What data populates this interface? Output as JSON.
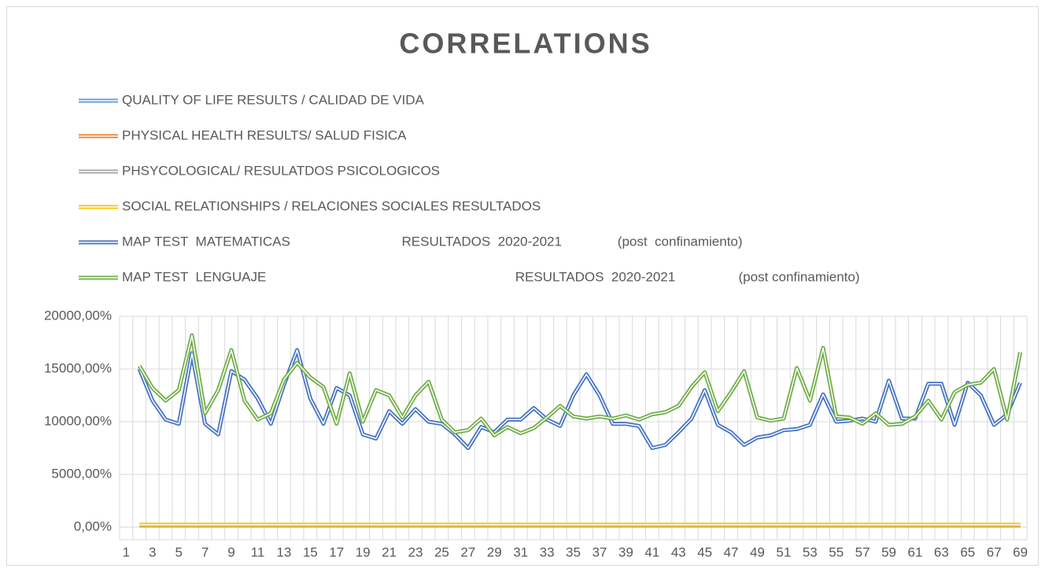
{
  "chart_data": {
    "type": "line",
    "title": "CORRELATIONS",
    "categories": [
      1,
      null,
      3,
      null,
      5,
      null,
      7,
      null,
      9,
      null,
      11,
      null,
      13,
      null,
      15,
      null,
      17,
      null,
      19,
      null,
      21,
      null,
      23,
      null,
      25,
      null,
      27,
      null,
      29,
      null,
      31,
      null,
      33,
      null,
      35,
      null,
      37,
      null,
      39,
      null,
      41,
      null,
      43,
      null,
      45,
      null,
      47,
      null,
      49,
      null,
      51,
      null,
      53,
      null,
      55,
      null,
      57,
      null,
      59,
      null,
      61,
      null,
      63,
      null,
      65,
      null,
      67,
      null,
      69
    ],
    "series": [
      {
        "name": "QUALITY OF LIFE RESULTS / CALIDAD DE VIDA",
        "color": "#5b9bd5",
        "values": [
          null,
          150,
          150,
          150,
          150,
          150,
          150,
          150,
          150,
          150,
          150,
          150,
          150,
          150,
          150,
          150,
          150,
          150,
          150,
          150,
          150,
          150,
          150,
          150,
          150,
          150,
          150,
          150,
          150,
          150,
          150,
          150,
          150,
          150,
          150,
          150,
          150,
          150,
          150,
          150,
          150,
          150,
          150,
          150,
          150,
          150,
          150,
          150,
          150,
          150,
          150,
          150,
          150,
          150,
          150,
          150,
          150,
          150,
          150,
          150,
          150,
          150,
          150,
          150,
          150,
          150,
          150,
          150,
          150
        ]
      },
      {
        "name": "PHYSICAL HEALTH RESULTS/ SALUD FISICA",
        "color": "#ed7d31",
        "values": [
          null,
          180,
          180,
          180,
          180,
          180,
          180,
          180,
          180,
          180,
          180,
          180,
          180,
          180,
          180,
          180,
          180,
          180,
          180,
          180,
          180,
          180,
          180,
          180,
          180,
          180,
          180,
          180,
          180,
          180,
          180,
          180,
          180,
          180,
          180,
          180,
          180,
          180,
          180,
          180,
          180,
          180,
          180,
          180,
          180,
          180,
          180,
          180,
          180,
          180,
          180,
          180,
          180,
          180,
          180,
          180,
          180,
          180,
          180,
          180,
          180,
          180,
          180,
          180,
          180,
          180,
          180,
          180,
          180
        ]
      },
      {
        "name": "PHSYCOLOGICAL/ RESULATDOS PSICOLOGICOS",
        "color": "#a5a5a5",
        "values": [
          null,
          170,
          170,
          170,
          170,
          170,
          170,
          170,
          170,
          170,
          170,
          170,
          170,
          170,
          170,
          170,
          170,
          170,
          170,
          170,
          170,
          170,
          170,
          170,
          170,
          170,
          170,
          170,
          170,
          170,
          170,
          170,
          170,
          170,
          170,
          170,
          170,
          170,
          170,
          170,
          170,
          170,
          170,
          170,
          170,
          170,
          170,
          170,
          170,
          170,
          170,
          170,
          170,
          170,
          170,
          170,
          170,
          170,
          170,
          170,
          170,
          170,
          170,
          170,
          170,
          170,
          170,
          170,
          170
        ]
      },
      {
        "name": "SOCIAL RELATIONSHIPS / RELACIONES SOCIALES RESULTADOS",
        "color": "#ffc000",
        "values": [
          null,
          230,
          230,
          230,
          230,
          230,
          230,
          230,
          230,
          230,
          230,
          230,
          230,
          230,
          230,
          230,
          230,
          230,
          230,
          230,
          230,
          230,
          230,
          230,
          230,
          230,
          230,
          230,
          230,
          230,
          230,
          230,
          230,
          230,
          230,
          230,
          230,
          230,
          230,
          230,
          230,
          230,
          230,
          230,
          230,
          230,
          230,
          230,
          230,
          230,
          230,
          230,
          230,
          230,
          230,
          230,
          230,
          230,
          230,
          230,
          230,
          230,
          230,
          230,
          230,
          230,
          230,
          230,
          230
        ]
      },
      {
        "name": "MAP TEST  MATEMATICAS                              RESULTADOS  2020-2021               (post  confinamiento)",
        "color": "#4472c4",
        "values": [
          null,
          15000,
          12000,
          10200,
          9800,
          16500,
          9800,
          8800,
          14800,
          14000,
          12200,
          9800,
          13500,
          16800,
          12200,
          9800,
          13200,
          12500,
          8800,
          8400,
          11000,
          9800,
          11200,
          10000,
          9800,
          8800,
          7500,
          9500,
          9000,
          10200,
          10200,
          11300,
          10200,
          9600,
          12500,
          14500,
          12500,
          9800,
          9800,
          9600,
          7500,
          7800,
          9000,
          10300,
          13000,
          9700,
          9000,
          7800,
          8500,
          8700,
          9200,
          9300,
          9700,
          12600,
          10000,
          10100,
          10300,
          10000,
          13900,
          10300,
          10300,
          13600,
          13600,
          9700,
          13700,
          12500,
          9700,
          10700,
          13700
        ]
      },
      {
        "name": "MAP TEST  LENGUAJE                                                                   RESULTADOS  2020-2021                 (post confinamiento)",
        "color": "#70ad47",
        "values": [
          null,
          15300,
          13200,
          12000,
          13000,
          18200,
          10800,
          13000,
          16800,
          12000,
          10200,
          10800,
          14000,
          15600,
          14200,
          13300,
          9800,
          14600,
          10000,
          13000,
          12500,
          10400,
          12500,
          13800,
          10200,
          9000,
          9200,
          10300,
          8700,
          9500,
          8900,
          9400,
          10400,
          11500,
          10500,
          10300,
          10500,
          10300,
          10600,
          10200,
          10700,
          10900,
          11500,
          13300,
          14700,
          11000,
          12800,
          14800,
          10400,
          10100,
          10300,
          15100,
          12000,
          17000,
          10500,
          10400,
          9800,
          10800,
          9700,
          9800,
          10500,
          12000,
          10200,
          12800,
          13500,
          13700,
          15000,
          10200,
          16600
        ]
      }
    ],
    "ylim": [
      0,
      20000
    ],
    "yticks": [
      {
        "value": 0,
        "label": "0,00%"
      },
      {
        "value": 5000,
        "label": "5000,00%"
      },
      {
        "value": 10000,
        "label": "10000,00%"
      },
      {
        "value": 15000,
        "label": "15000,00%"
      },
      {
        "value": 20000,
        "label": "20000,00%"
      }
    ],
    "grid": true
  }
}
